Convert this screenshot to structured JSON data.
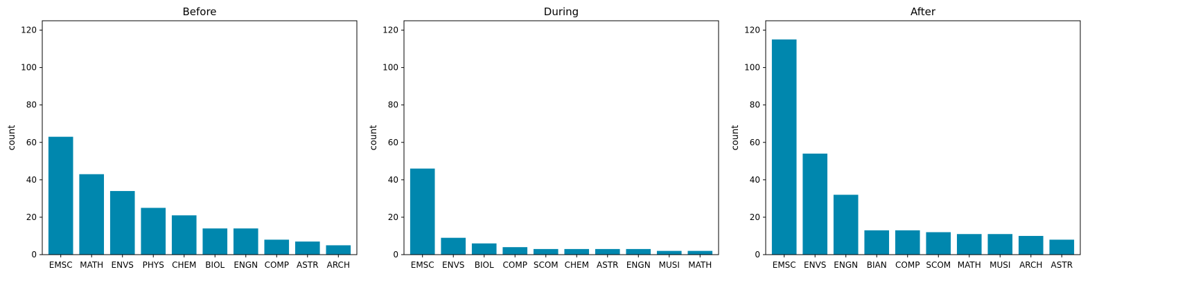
{
  "chart_data": [
    {
      "type": "bar",
      "title": "Before",
      "xlabel": "",
      "ylabel": "count",
      "ylim": [
        0,
        125
      ],
      "yticks": [
        0,
        20,
        40,
        60,
        80,
        100,
        120
      ],
      "categories": [
        "EMSC",
        "MATH",
        "ENVS",
        "PHYS",
        "CHEM",
        "BIOL",
        "ENGN",
        "COMP",
        "ASTR",
        "ARCH"
      ],
      "values": [
        63,
        43,
        34,
        25,
        21,
        14,
        14,
        8,
        7,
        5
      ],
      "color": "#0087AE"
    },
    {
      "type": "bar",
      "title": "During",
      "xlabel": "",
      "ylabel": "count",
      "ylim": [
        0,
        125
      ],
      "yticks": [
        0,
        20,
        40,
        60,
        80,
        100,
        120
      ],
      "categories": [
        "EMSC",
        "ENVS",
        "BIOL",
        "COMP",
        "SCOM",
        "CHEM",
        "ASTR",
        "ENGN",
        "MUSI",
        "MATH"
      ],
      "values": [
        46,
        9,
        6,
        4,
        3,
        3,
        3,
        3,
        2,
        2
      ],
      "color": "#0087AE"
    },
    {
      "type": "bar",
      "title": "After",
      "xlabel": "",
      "ylabel": "count",
      "ylim": [
        0,
        125
      ],
      "yticks": [
        0,
        20,
        40,
        60,
        80,
        100,
        120
      ],
      "categories": [
        "EMSC",
        "ENVS",
        "ENGN",
        "BIAN",
        "COMP",
        "SCOM",
        "MATH",
        "MUSI",
        "ARCH",
        "ASTR"
      ],
      "values": [
        115,
        54,
        32,
        13,
        13,
        12,
        11,
        11,
        10,
        8
      ],
      "color": "#0087AE"
    }
  ]
}
